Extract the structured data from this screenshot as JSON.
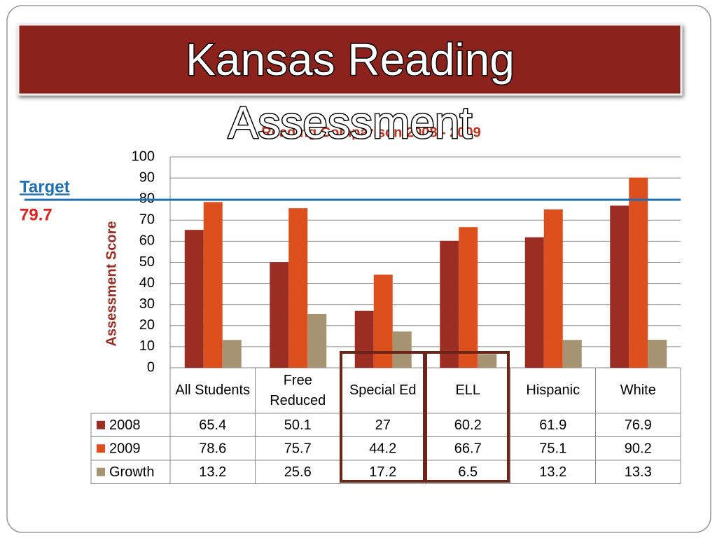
{
  "title_lines": [
    "Kansas Reading",
    "Assessment"
  ],
  "chart_data": {
    "type": "bar",
    "subtitle": "Reading Comparison 2008 - 2009",
    "y_label": "Assessment Score",
    "categories": [
      "All Students",
      "Free Reduced",
      "Special Ed",
      "ELL",
      "Hispanic",
      "White"
    ],
    "series": [
      {
        "name": "2008",
        "color": "#9b2d23",
        "values": [
          65.4,
          50.1,
          27,
          60.2,
          61.9,
          76.9
        ]
      },
      {
        "name": "2009",
        "color": "#dd4f1d",
        "values": [
          78.6,
          75.7,
          44.2,
          66.7,
          75.1,
          90.2
        ]
      },
      {
        "name": "Growth",
        "color": "#a59372",
        "values": [
          13.2,
          25.6,
          17.2,
          6.5,
          13.2,
          13.3
        ]
      }
    ],
    "ylim": [
      0,
      100
    ],
    "yticks": [
      0,
      10,
      20,
      30,
      40,
      50,
      60,
      70,
      80,
      90,
      100
    ],
    "grid": true,
    "target_label": "Target",
    "target": 79.7,
    "target_color": "#1f6fb5"
  }
}
